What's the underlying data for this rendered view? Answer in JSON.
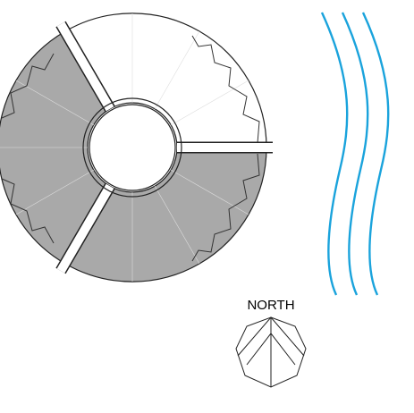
{
  "compass": {
    "label": "NORTH"
  }
}
